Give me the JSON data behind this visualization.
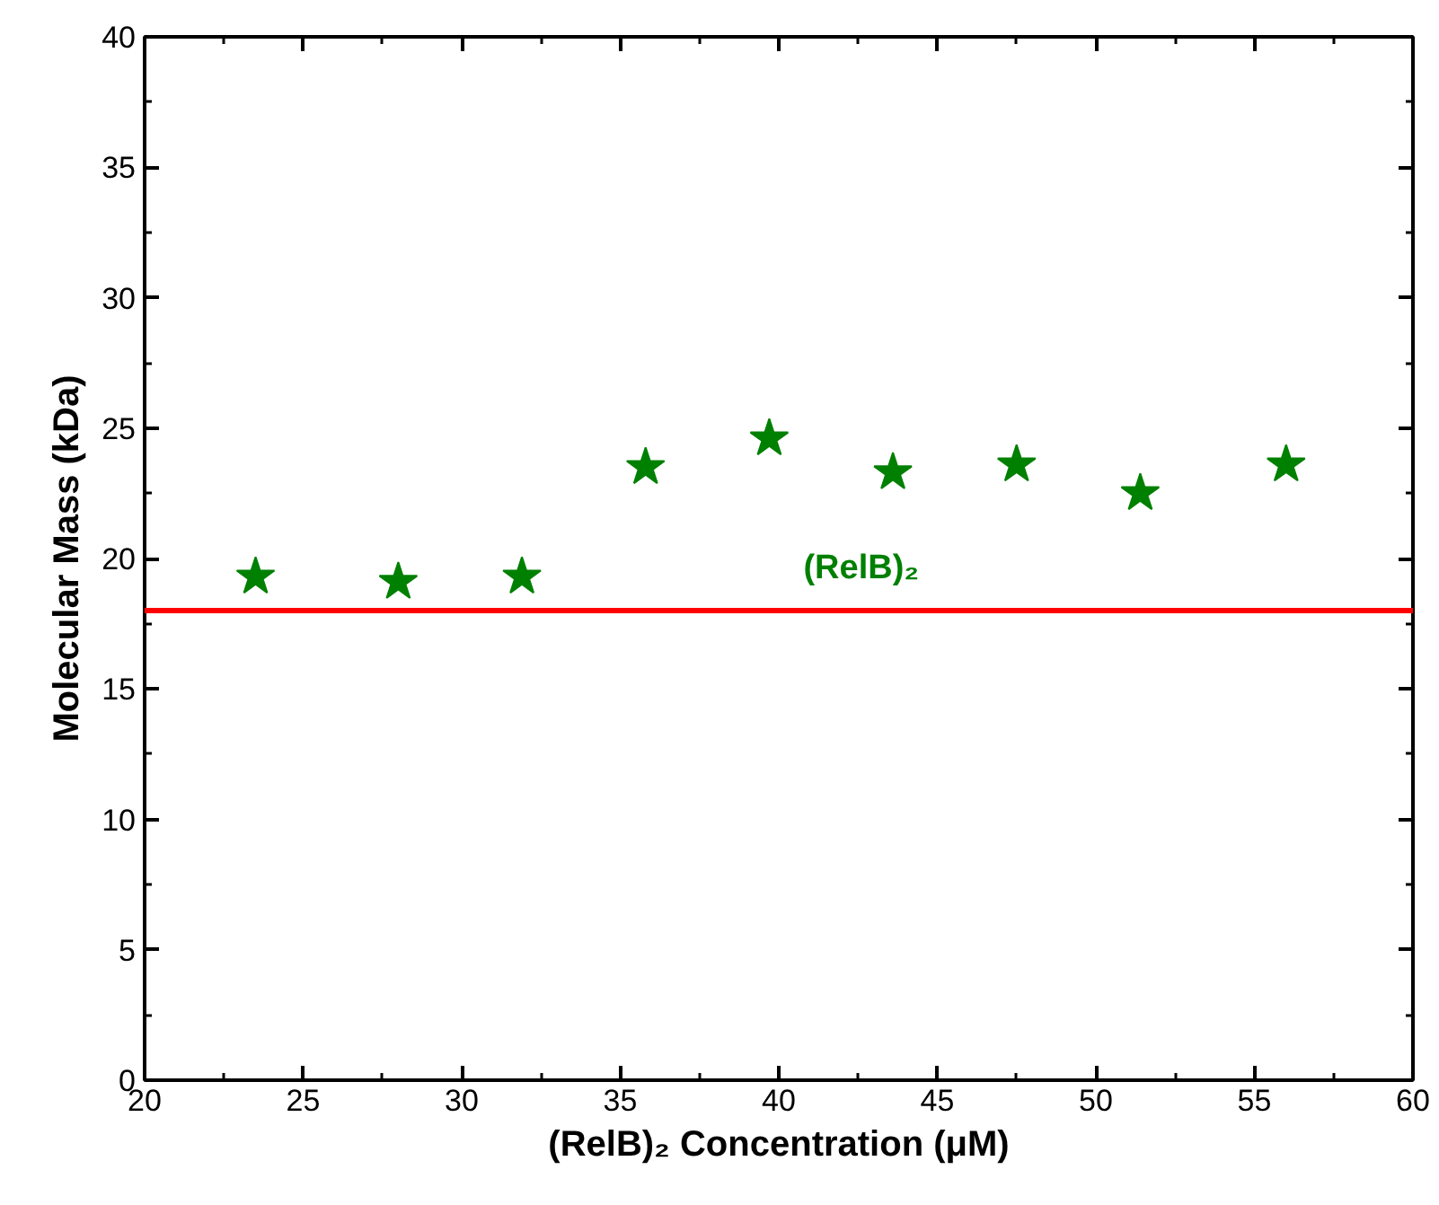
{
  "chart_data": {
    "type": "scatter",
    "xlabel": "(RelB)₂ Concentration (μM)",
    "ylabel": "Molecular Mass (kDa)",
    "x": [
      23.5,
      28,
      31.9,
      35.8,
      39.7,
      43.6,
      47.5,
      51.4,
      56
    ],
    "series": [
      {
        "color": "#008000",
        "values": [
          19.3,
          19.1,
          19.3,
          23.5,
          24.6,
          23.3,
          23.6,
          22.5,
          23.6
        ]
      }
    ],
    "marker": "star",
    "xlim": [
      20,
      60
    ],
    "xticks": [
      20,
      25,
      30,
      35,
      40,
      45,
      50,
      55,
      60
    ],
    "ylim": [
      0,
      40
    ],
    "yticks": [
      0,
      5,
      10,
      15,
      20,
      25,
      30,
      35,
      40
    ],
    "ref_lines": [
      {
        "axis": "y",
        "value": 18,
        "label": "(RelB)₂",
        "color": "#ff0000"
      }
    ],
    "tick_labels": true
  }
}
